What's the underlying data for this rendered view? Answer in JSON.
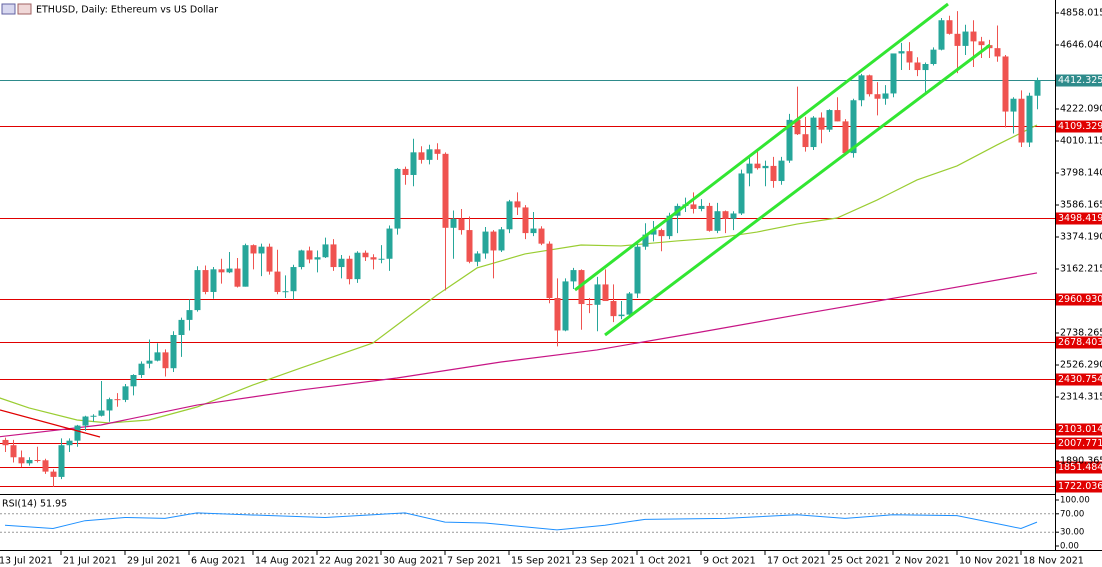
{
  "chart_data": {
    "type": "candlestick",
    "title": "ETHUSD, Daily:  Ethereum vs US Dollar",
    "open": [
      2030,
      1995,
      1915,
      1875,
      1897,
      1895,
      1820,
      1785,
      1995,
      2025,
      2125,
      2185,
      2190,
      2225,
      2300,
      2295,
      2385,
      2460,
      2535,
      2555,
      2610,
      2505,
      2725,
      2825,
      2890,
      3155,
      3010,
      3160,
      3140,
      3165,
      3045,
      3320,
      3265,
      3310,
      3145,
      3010,
      3015,
      3175,
      3285,
      3225,
      3240,
      3325,
      3175,
      3230,
      3095,
      3270,
      3240,
      3225,
      3230,
      3430,
      3825,
      3785,
      3935,
      3885,
      3955,
      3925,
      3435,
      3495,
      3420,
      3210,
      3265,
      3410,
      3285,
      3425,
      3610,
      3570,
      3400,
      3430,
      3330,
      2970,
      2755,
      3080,
      3155,
      2930,
      2925,
      3060,
      2950,
      2850,
      2860,
      3000,
      3310,
      3390,
      3420,
      3380,
      3515,
      3580,
      3590,
      3560,
      3580,
      3415,
      3545,
      3495,
      3530,
      3795,
      3860,
      3830,
      3845,
      3745,
      3880,
      4150,
      4055,
      3970,
      4165,
      4085,
      4215,
      4140,
      3930,
      4280,
      4445,
      4320,
      4290,
      4325,
      4590,
      4605,
      4530,
      4480,
      4520,
      4615,
      4810,
      4720,
      4640,
      4735,
      4670,
      4645,
      4625,
      4570,
      4205,
      4290,
      4000,
      4310
    ],
    "high": [
      2045,
      2030,
      1960,
      1915,
      1985,
      1905,
      1835,
      2040,
      2040,
      2130,
      2190,
      2200,
      2420,
      2310,
      2340,
      2400,
      2465,
      2550,
      2695,
      2670,
      2630,
      2750,
      2840,
      2960,
      3180,
      3185,
      3175,
      3230,
      3275,
      3235,
      3330,
      3325,
      3330,
      3330,
      3290,
      3120,
      3190,
      3290,
      3310,
      3285,
      3370,
      3360,
      3255,
      3250,
      3280,
      3285,
      3260,
      3320,
      3450,
      3830,
      3840,
      4025,
      3975,
      3985,
      3995,
      3935,
      3550,
      3560,
      3510,
      3280,
      3440,
      3420,
      3440,
      3620,
      3670,
      3585,
      3540,
      3445,
      3345,
      3100,
      3100,
      3170,
      3160,
      2970,
      3110,
      3160,
      3060,
      2950,
      3010,
      3340,
      3465,
      3480,
      3430,
      3535,
      3595,
      3635,
      3670,
      3625,
      3600,
      3600,
      3550,
      3545,
      3820,
      3900,
      3960,
      3880,
      3905,
      3905,
      4190,
      4370,
      4170,
      4175,
      4200,
      4220,
      4300,
      4155,
      4290,
      4455,
      4450,
      4400,
      4380,
      4590,
      4660,
      4665,
      4565,
      4530,
      4630,
      4825,
      4840,
      4870,
      4780,
      4810,
      4700,
      4680,
      4775,
      4580,
      4300,
      4345,
      4330,
      4430
    ],
    "low": [
      1950,
      1880,
      1850,
      1860,
      1880,
      1805,
      1720,
      1770,
      1950,
      1985,
      2090,
      2150,
      2185,
      2150,
      2250,
      2280,
      2325,
      2440,
      2505,
      2550,
      2450,
      2480,
      2580,
      2755,
      2880,
      2995,
      2965,
      3065,
      3135,
      3040,
      3045,
      3160,
      3115,
      3125,
      2995,
      2970,
      2960,
      3160,
      3200,
      3140,
      3235,
      3150,
      3100,
      3060,
      3070,
      3215,
      3160,
      3200,
      3150,
      3390,
      3720,
      3710,
      3860,
      3855,
      3885,
      3020,
      3230,
      3390,
      3200,
      3180,
      3230,
      3100,
      3275,
      3400,
      3520,
      3360,
      3380,
      3320,
      2935,
      2650,
      2750,
      3030,
      2760,
      2870,
      2750,
      2950,
      2810,
      2830,
      2850,
      2970,
      3290,
      3345,
      3280,
      3360,
      3400,
      3540,
      3530,
      3545,
      3410,
      3400,
      3400,
      3420,
      3520,
      3710,
      3820,
      3710,
      3700,
      3720,
      3865,
      4050,
      3940,
      3950,
      3995,
      4070,
      4140,
      3930,
      3900,
      4240,
      4305,
      4180,
      4250,
      4300,
      4480,
      4480,
      4440,
      4330,
      4510,
      4610,
      4715,
      4460,
      4580,
      4500,
      4560,
      4560,
      4535,
      4100,
      4060,
      3970,
      3970,
      4220
    ],
    "close": [
      1995,
      1915,
      1875,
      1897,
      1895,
      1820,
      1785,
      1995,
      2025,
      2125,
      2185,
      2190,
      2225,
      2300,
      2295,
      2385,
      2460,
      2535,
      2555,
      2610,
      2505,
      2725,
      2825,
      2890,
      3155,
      3010,
      3160,
      3140,
      3165,
      3045,
      3320,
      3265,
      3310,
      3145,
      3010,
      3015,
      3175,
      3285,
      3225,
      3240,
      3325,
      3175,
      3230,
      3095,
      3270,
      3240,
      3225,
      3230,
      3430,
      3825,
      3785,
      3935,
      3885,
      3955,
      3925,
      3435,
      3495,
      3420,
      3210,
      3265,
      3410,
      3285,
      3425,
      3610,
      3570,
      3400,
      3430,
      3330,
      2970,
      2755,
      3080,
      3155,
      2930,
      2925,
      3060,
      2950,
      2850,
      2860,
      3000,
      3310,
      3390,
      3420,
      3380,
      3515,
      3580,
      3590,
      3560,
      3580,
      3415,
      3545,
      3495,
      3530,
      3795,
      3860,
      3830,
      3845,
      3745,
      3880,
      4150,
      4055,
      3970,
      4165,
      4085,
      4215,
      4140,
      3930,
      4280,
      4445,
      4320,
      4290,
      4325,
      4590,
      4605,
      4530,
      4480,
      4520,
      4615,
      4810,
      4720,
      4640,
      4735,
      4670,
      4645,
      4625,
      4570,
      4205,
      4290,
      4000,
      4310,
      4412.325
    ],
    "up_color": "#26a69a",
    "down_color": "#ef5350",
    "xticks": [
      {
        "value": -1,
        "label": "13 Jul 2021"
      },
      {
        "value": 7,
        "label": "21 Jul 2021"
      },
      {
        "value": 15,
        "label": "29 Jul 2021"
      },
      {
        "value": 23,
        "label": "6 Aug 2021"
      },
      {
        "value": 31,
        "label": "14 Aug 2021"
      },
      {
        "value": 39,
        "label": "22 Aug 2021"
      },
      {
        "value": 47,
        "label": "30 Aug 2021"
      },
      {
        "value": 55,
        "label": "7 Sep 2021"
      },
      {
        "value": 63,
        "label": "15 Sep 2021"
      },
      {
        "value": 71,
        "label": "23 Sep 2021"
      },
      {
        "value": 79,
        "label": "1 Oct 2021"
      },
      {
        "value": 87,
        "label": "9 Oct 2021"
      },
      {
        "value": 95,
        "label": "17 Oct 2021"
      },
      {
        "value": 103,
        "label": "25 Oct 2021"
      },
      {
        "value": 111,
        "label": "2 Nov 2021"
      },
      {
        "value": 119,
        "label": "10 Nov 2021"
      },
      {
        "value": 127,
        "label": "18 Nov 2021"
      }
    ],
    "ylim": [
      1685,
      4944
    ],
    "yticks": [
      4858.015,
      {
        "value": 4646.04,
        "label": "4646.040"
      },
      {
        "value": 4222.09,
        "label": "4222.090"
      },
      4010.115,
      {
        "value": 3798.14,
        "label": "3798.140"
      },
      3586.165,
      {
        "value": 3374.19,
        "label": "3374.190"
      },
      3162.215,
      2738.265,
      {
        "value": 2526.29,
        "label": "2526.290"
      },
      2314.315,
      1890.365
    ],
    "levels": [
      4109.329,
      3498.419,
      {
        "value": 2960.93,
        "label": "2960.930"
      },
      2678.403,
      2430.754,
      2103.014,
      2007.771,
      1851.484,
      1722.036
    ],
    "level_color": "#e00000",
    "price": 4412.325,
    "price_color": "#2e8b8b",
    "ma": [
      {
        "color": "#9acd32",
        "x": [
          -1,
          3,
          9,
          13,
          18,
          24,
          31,
          37,
          46,
          49,
          54,
          59,
          65,
          72,
          77,
          84,
          89,
          94,
          99,
          104,
          109,
          114,
          119,
          124,
          129
        ],
        "values": [
          2314,
          2242,
          2162,
          2142,
          2162,
          2248,
          2394,
          2507,
          2672,
          2791,
          2990,
          3169,
          3262,
          3321,
          3315,
          3348,
          3368,
          3407,
          3460,
          3500,
          3619,
          3752,
          3845,
          3984,
          4116
        ]
      },
      {
        "color": "#c71585",
        "x": [
          -1,
          12,
          24,
          37,
          49,
          62,
          74,
          87,
          99,
          112,
          129
        ],
        "values": [
          2049,
          2129,
          2261,
          2361,
          2440,
          2546,
          2626,
          2745,
          2858,
          2977,
          3136
        ]
      }
    ],
    "rsi": {
      "label": "RSI(14) 51.95",
      "color": "#1e90ff",
      "x": [
        0,
        6,
        10,
        15,
        20,
        24,
        30,
        40,
        50,
        55,
        60,
        69,
        75,
        80,
        90,
        99,
        105,
        111,
        119,
        125,
        127,
        129
      ],
      "values": [
        45,
        38,
        55,
        62,
        60,
        72,
        68,
        62,
        72,
        52,
        50,
        35,
        45,
        58,
        60,
        68,
        60,
        68,
        66,
        45,
        38,
        51.95
      ],
      "ylim": [
        0,
        100
      ],
      "yticks": [
        {
          "value": 100,
          "label": "100.00"
        },
        {
          "value": 70,
          "label": "70.00"
        },
        {
          "value": 30,
          "label": "30.00"
        },
        {
          "value": 0,
          "label": "0.00"
        }
      ]
    }
  }
}
